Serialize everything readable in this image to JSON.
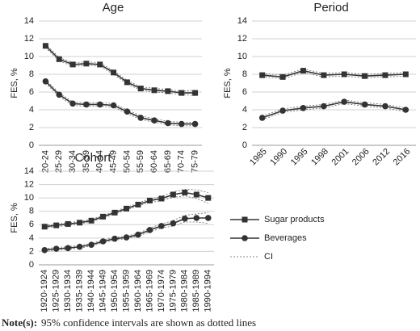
{
  "chart_data": [
    {
      "type": "line",
      "title": "Age",
      "y_label": "FES, %",
      "categories": [
        "20-24",
        "25-29",
        "30-34",
        "35-39",
        "40-44",
        "45-49",
        "50-54",
        "55-59",
        "60-64",
        "65-69",
        "70-74",
        "75-79"
      ],
      "ylim": [
        0,
        14
      ],
      "yticks": [
        0,
        2,
        4,
        6,
        8,
        10,
        12,
        14
      ],
      "grid": true,
      "series": [
        {
          "name": "Sugar products",
          "color": "#333333",
          "marker": "square",
          "values": [
            11.2,
            9.7,
            9.1,
            9.2,
            9.1,
            8.2,
            7.1,
            6.4,
            6.2,
            6.1,
            5.9,
            5.9
          ],
          "ci_lower": [
            11.0,
            9.5,
            8.9,
            9.0,
            8.9,
            8.0,
            6.9,
            6.2,
            6.0,
            5.9,
            5.7,
            5.6
          ],
          "ci_upper": [
            11.4,
            9.9,
            9.3,
            9.4,
            9.3,
            8.4,
            7.3,
            6.6,
            6.4,
            6.3,
            6.1,
            6.2
          ]
        },
        {
          "name": "Beverages",
          "color": "#333333",
          "marker": "circle",
          "values": [
            7.2,
            5.7,
            4.7,
            4.6,
            4.6,
            4.5,
            3.8,
            3.1,
            2.8,
            2.5,
            2.4,
            2.4
          ],
          "ci_lower": [
            7.0,
            5.5,
            4.5,
            4.4,
            4.4,
            4.3,
            3.6,
            2.9,
            2.6,
            2.3,
            2.2,
            2.2
          ],
          "ci_upper": [
            7.4,
            5.9,
            4.9,
            4.8,
            4.8,
            4.7,
            4.0,
            3.3,
            3.0,
            2.7,
            2.6,
            2.6
          ]
        }
      ]
    },
    {
      "type": "line",
      "title": "Period",
      "y_label": "FES, %",
      "categories": [
        "1985",
        "1990",
        "1995",
        "1998",
        "2001",
        "2006",
        "2012",
        "2016"
      ],
      "ylim": [
        0,
        14
      ],
      "yticks": [
        0,
        2,
        4,
        6,
        8,
        10,
        12,
        14
      ],
      "grid": true,
      "series": [
        {
          "name": "Sugar products",
          "color": "#333333",
          "marker": "square",
          "values": [
            7.9,
            7.7,
            8.4,
            7.9,
            8.0,
            7.8,
            7.9,
            8.0
          ],
          "ci_lower": [
            7.7,
            7.5,
            8.2,
            7.7,
            7.8,
            7.6,
            7.7,
            7.8
          ],
          "ci_upper": [
            8.1,
            7.9,
            8.6,
            8.1,
            8.2,
            8.0,
            8.1,
            8.2
          ]
        },
        {
          "name": "Beverages",
          "color": "#333333",
          "marker": "circle",
          "values": [
            3.1,
            3.9,
            4.2,
            4.4,
            4.9,
            4.6,
            4.4,
            4.0
          ],
          "ci_lower": [
            2.9,
            3.7,
            4.0,
            4.2,
            4.7,
            4.4,
            4.2,
            3.8
          ],
          "ci_upper": [
            3.3,
            4.1,
            4.4,
            4.6,
            5.1,
            4.8,
            4.6,
            4.2
          ]
        }
      ]
    },
    {
      "type": "line",
      "title": "Cohort",
      "y_label": "FES, %",
      "ci_label": "CI",
      "categories": [
        "1920-1924",
        "1925-1929",
        "1930-1934",
        "1935-1939",
        "1940-1944",
        "1945-1949",
        "1950-1954",
        "1955-1959",
        "1960-1964",
        "1965-1969",
        "1970-1974",
        "1975-1979",
        "1980-1984",
        "1985-1989",
        "1990-1994"
      ],
      "ylim": [
        0,
        14
      ],
      "yticks": [
        0,
        2,
        4,
        6,
        8,
        10,
        12,
        14
      ],
      "grid": true,
      "series": [
        {
          "name": "Sugar products",
          "color": "#333333",
          "marker": "square",
          "values": [
            5.7,
            5.9,
            6.1,
            6.3,
            6.6,
            7.2,
            7.8,
            8.4,
            9.0,
            9.6,
            9.9,
            10.5,
            10.8,
            10.5,
            10.0
          ],
          "ci_lower": [
            5.5,
            5.7,
            5.9,
            6.1,
            6.4,
            7.0,
            7.6,
            8.2,
            8.8,
            9.3,
            9.6,
            10.1,
            10.3,
            9.9,
            9.2
          ],
          "ci_upper": [
            5.9,
            6.1,
            6.3,
            6.5,
            6.8,
            7.4,
            8.0,
            8.6,
            9.2,
            9.9,
            10.2,
            10.9,
            11.3,
            11.2,
            10.8
          ]
        },
        {
          "name": "Beverages",
          "color": "#333333",
          "marker": "circle",
          "values": [
            2.2,
            2.4,
            2.5,
            2.7,
            3.0,
            3.5,
            3.9,
            4.1,
            4.5,
            5.2,
            5.8,
            6.2,
            6.9,
            7.0,
            7.0
          ],
          "ci_lower": [
            2.0,
            2.2,
            2.3,
            2.5,
            2.8,
            3.3,
            3.7,
            3.9,
            4.3,
            4.9,
            5.5,
            5.8,
            6.4,
            6.4,
            6.2
          ],
          "ci_upper": [
            2.4,
            2.6,
            2.7,
            2.9,
            3.2,
            3.7,
            4.1,
            4.3,
            4.7,
            5.5,
            6.1,
            6.6,
            7.4,
            7.6,
            7.8
          ]
        }
      ]
    }
  ],
  "note": {
    "label": "Note(s):",
    "text": "95% confidence intervals are shown as dotted lines"
  }
}
